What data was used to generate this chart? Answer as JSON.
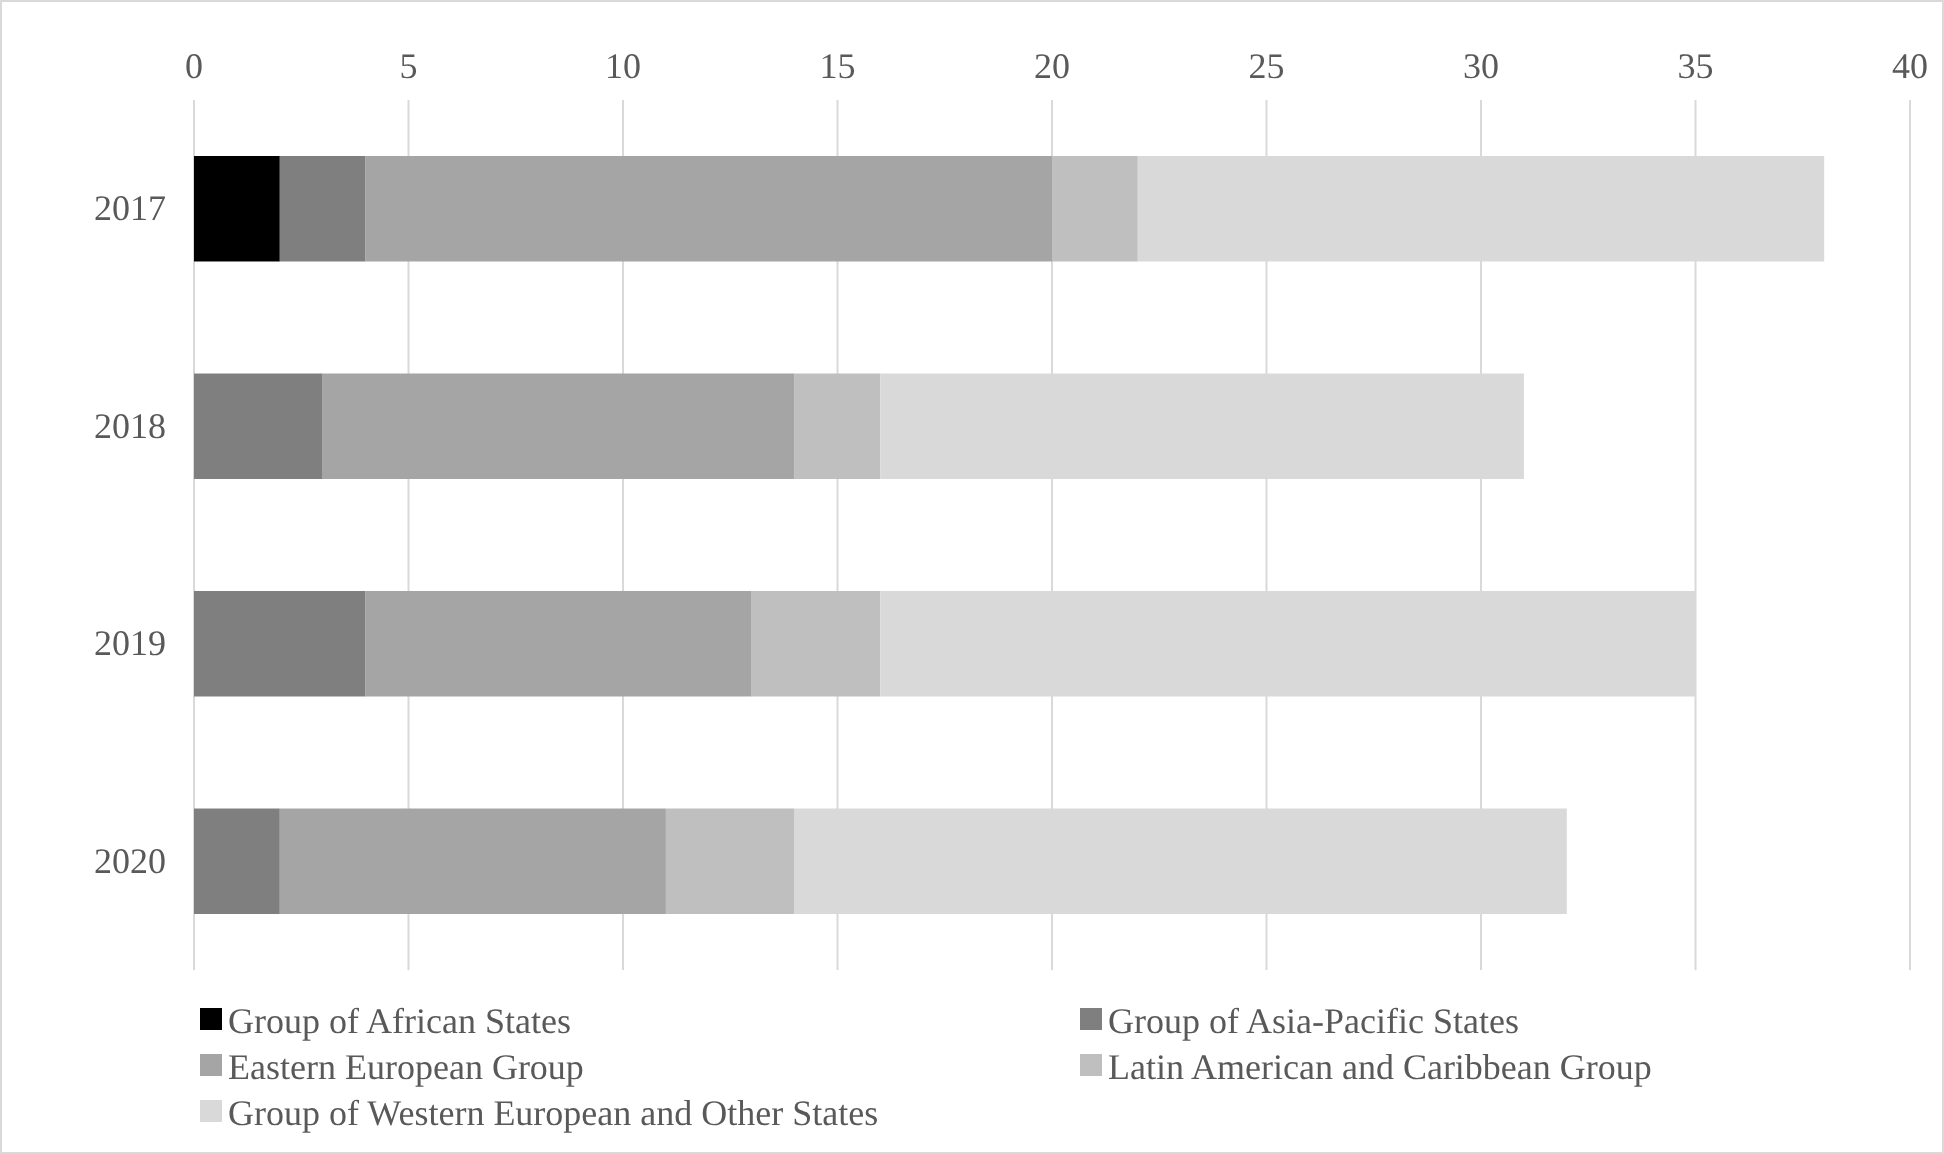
{
  "chart_data": {
    "type": "bar",
    "orientation": "horizontal",
    "stacked": true,
    "categories": [
      "2017",
      "2018",
      "2019",
      "2020"
    ],
    "series": [
      {
        "name": "Group of African States",
        "color": "#000000",
        "values": [
          2,
          0,
          0,
          0
        ]
      },
      {
        "name": "Group of Asia-Pacific States",
        "color": "#7f7f7f",
        "values": [
          2,
          3,
          4,
          2
        ]
      },
      {
        "name": "Eastern European Group",
        "color": "#a5a5a5",
        "values": [
          16,
          11,
          9,
          9
        ]
      },
      {
        "name": "Latin American and Caribbean Group",
        "color": "#bfbfbf",
        "values": [
          2,
          2,
          3,
          3
        ]
      },
      {
        "name": "Group of Western European and Other States",
        "color": "#d9d9d9",
        "values": [
          16,
          15,
          19,
          18
        ]
      }
    ],
    "xlim": [
      0,
      40
    ],
    "xticks": [
      0,
      5,
      10,
      15,
      20,
      25,
      30,
      35,
      40
    ],
    "grid": "x",
    "legend": "bottom"
  }
}
